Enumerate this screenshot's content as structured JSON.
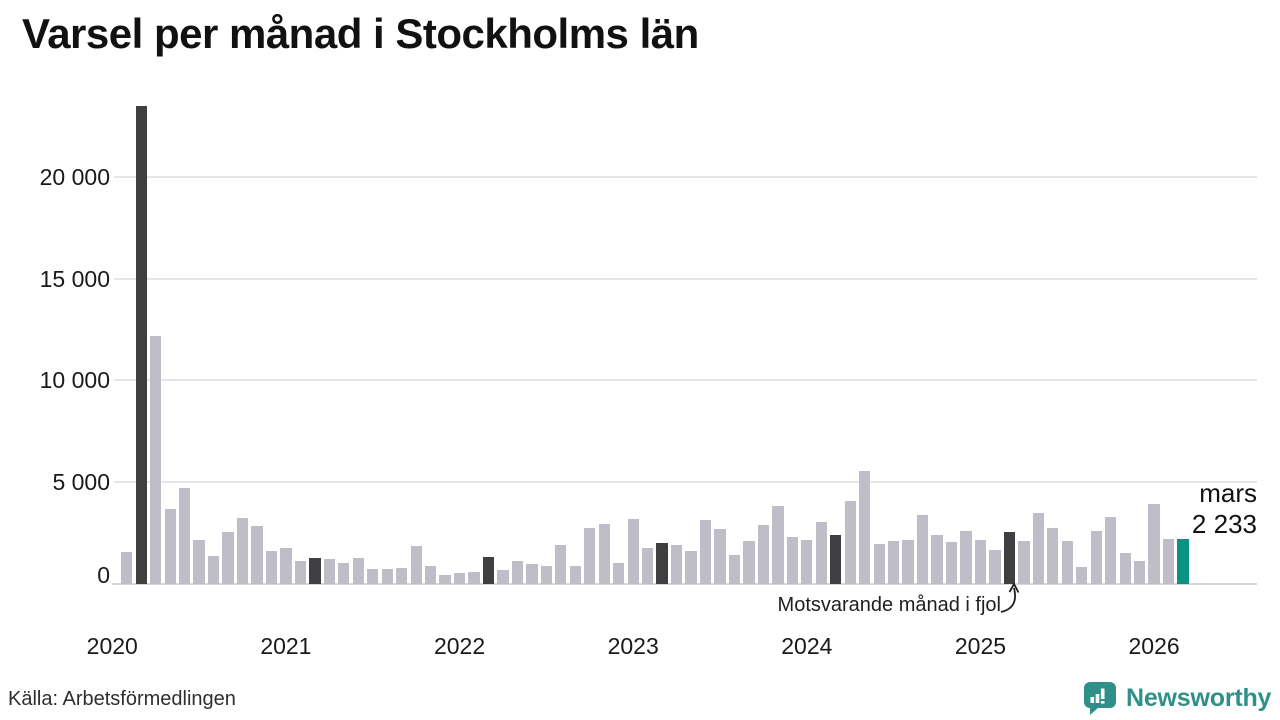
{
  "title": "Varsel per månad i Stockholms län",
  "source": "Källa: Arbetsförmedlingen",
  "logo": {
    "text": "Newsworthy",
    "icon": "speech-bubble-bar-chart",
    "color": "#2f9089"
  },
  "annotation": {
    "text": "Motsvarande månad i fjol"
  },
  "last_point_label": {
    "line1": "mars",
    "line2": "2 233"
  },
  "colors": {
    "bar_default": "#bfbdc8",
    "bar_same_month_previous_years": "#3f3f42",
    "bar_current_month": "#0d9183",
    "gridline": "#e6e6ea",
    "axis_line": "#d9d9dd",
    "text": "#1a1a1a"
  },
  "chart_data": {
    "type": "bar",
    "title": "Varsel per månad i Stockholms län",
    "xlabel": "",
    "ylabel": "",
    "grid": "horizontal",
    "legend_position": "none",
    "ylim": [
      0,
      24000
    ],
    "y_ticks": [
      0,
      5000,
      10000,
      15000,
      20000
    ],
    "y_tick_labels": [
      "0",
      "5 000",
      "10 000",
      "15 000",
      "20 000"
    ],
    "x_tick_labels": [
      "2020",
      "2021",
      "2022",
      "2023",
      "2024",
      "2025",
      "2026"
    ],
    "x": [
      "2020-02",
      "2020-03",
      "2020-04",
      "2020-05",
      "2020-06",
      "2020-07",
      "2020-08",
      "2020-09",
      "2020-10",
      "2020-11",
      "2020-12",
      "2021-01",
      "2021-02",
      "2021-03",
      "2021-04",
      "2021-05",
      "2021-06",
      "2021-07",
      "2021-08",
      "2021-09",
      "2021-10",
      "2021-11",
      "2021-12",
      "2022-01",
      "2022-02",
      "2022-03",
      "2022-04",
      "2022-05",
      "2022-06",
      "2022-07",
      "2022-08",
      "2022-09",
      "2022-10",
      "2022-11",
      "2022-12",
      "2023-01",
      "2023-02",
      "2023-03",
      "2023-04",
      "2023-05",
      "2023-06",
      "2023-07",
      "2023-08",
      "2023-09",
      "2023-10",
      "2023-11",
      "2023-12",
      "2024-01",
      "2024-02",
      "2024-03",
      "2024-04",
      "2024-05",
      "2024-06",
      "2024-07",
      "2024-08",
      "2024-09",
      "2024-10",
      "2024-11",
      "2024-12",
      "2025-01",
      "2025-02",
      "2025-03",
      "2025-04",
      "2025-05",
      "2025-06",
      "2025-07",
      "2025-08",
      "2025-09",
      "2025-10",
      "2025-11",
      "2025-12",
      "2026-01",
      "2026-02",
      "2026-03"
    ],
    "values": [
      1570,
      23500,
      12200,
      3690,
      4730,
      2170,
      1400,
      2570,
      3230,
      2870,
      1600,
      1790,
      1110,
      1260,
      1210,
      1040,
      1260,
      740,
      750,
      800,
      1850,
      860,
      430,
      520,
      600,
      1330,
      680,
      1140,
      980,
      870,
      1930,
      900,
      2750,
      2960,
      1050,
      3170,
      1770,
      2000,
      1900,
      1600,
      3120,
      2720,
      1440,
      2110,
      2880,
      3810,
      2320,
      2170,
      3070,
      2400,
      4070,
      5540,
      1950,
      2130,
      2160,
      3370,
      2400,
      2060,
      2580,
      2160,
      1680,
      2550,
      2110,
      3490,
      2760,
      2110,
      820,
      2600,
      3300,
      1540,
      1130,
      3950,
      2200,
      2233
    ],
    "highlighted_months": [
      "2020-03",
      "2021-03",
      "2022-03",
      "2023-03",
      "2024-03",
      "2025-03"
    ],
    "highlight_meaning": "Motsvarande månad i fjol",
    "current_month": "2026-03",
    "current_month_label": "mars",
    "current_month_value_label": "2 233"
  }
}
